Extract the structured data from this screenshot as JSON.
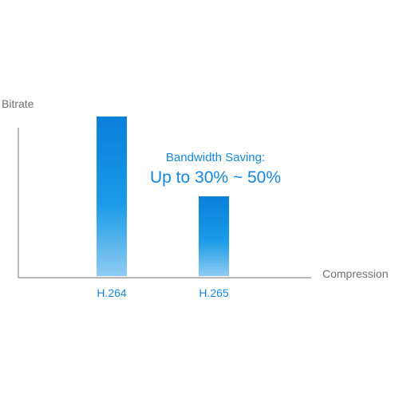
{
  "chart_data": {
    "type": "bar",
    "title": "",
    "xlabel": "Compression",
    "ylabel": "Bitrate",
    "categories": [
      "H.264",
      "H.265"
    ],
    "values": [
      100,
      50
    ],
    "ylim": [
      0,
      105
    ],
    "grid": false,
    "legend": "none",
    "annotation": {
      "line1": "Bandwidth Saving:",
      "line2": "Up to 30% ~ 50%"
    },
    "colors": {
      "bar_top": "#0a7fdb",
      "bar_mid": "#1a9be6",
      "bar_bottom": "#8fcbf2",
      "axis": "#8a8a8a",
      "axis_text": "#6f6f6f",
      "accent_text": "#1686d9"
    }
  }
}
